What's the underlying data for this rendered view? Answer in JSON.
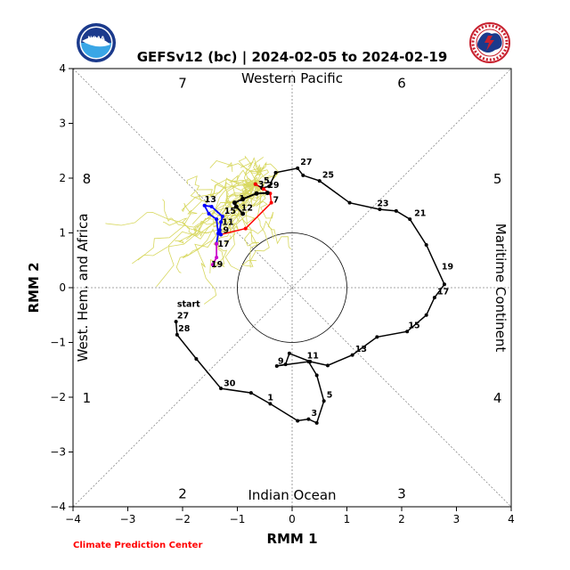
{
  "title": "GEFSv12 (bc) | 2024-02-05 to 2024-02-19",
  "footer": "Climate Prediction Center",
  "logos": {
    "left": "NOAA",
    "right": "NATIONAL WEATHER SERVICE"
  },
  "colors": {
    "observed": "#000000",
    "ens_mean_week1": "#ff0000",
    "ens_mean_week2": "#0000ff",
    "ens_mean_late": "#cc00cc",
    "members": "#d8d860",
    "footer": "#ff0000"
  },
  "chart_data": {
    "type": "line",
    "xlabel": "RMM 1",
    "ylabel": "RMM 2",
    "xlim": [
      -4,
      4
    ],
    "ylim": [
      -4,
      4
    ],
    "ticks": [
      -4,
      -3,
      -2,
      -1,
      0,
      1,
      2,
      3,
      4
    ],
    "grid": "diagonal dotted lines and unit circle",
    "phase_numbers": [
      {
        "phase": "1",
        "x": -3.75,
        "y": -2.0
      },
      {
        "phase": "2",
        "x": -2.0,
        "y": -3.75
      },
      {
        "phase": "3",
        "x": 2.0,
        "y": -3.75
      },
      {
        "phase": "4",
        "x": 3.75,
        "y": -2.0
      },
      {
        "phase": "5",
        "x": 3.75,
        "y": 2.0
      },
      {
        "phase": "6",
        "x": 2.0,
        "y": 3.75
      },
      {
        "phase": "7",
        "x": -2.0,
        "y": 3.75
      },
      {
        "phase": "8",
        "x": -3.75,
        "y": 2.0
      }
    ],
    "regions": {
      "top": "Western Pacific",
      "bottom": "Indian Ocean",
      "left": "West. Hem. and Africa",
      "right": "Maritime Continent"
    },
    "observed": {
      "name": "",
      "points": [
        [
          -2.12,
          -0.62
        ],
        [
          -2.1,
          -0.86
        ],
        [
          -1.75,
          -1.3
        ],
        [
          -1.3,
          -1.84
        ],
        [
          -0.75,
          -1.92
        ],
        [
          -0.4,
          -2.12
        ],
        [
          0.1,
          -2.43
        ],
        [
          0.3,
          -2.4
        ],
        [
          0.45,
          -2.47
        ],
        [
          0.58,
          -2.07
        ],
        [
          0.45,
          -1.6
        ],
        [
          0.3,
          -1.35
        ],
        [
          -0.28,
          -1.43
        ],
        [
          -0.12,
          -1.4
        ],
        [
          -0.05,
          -1.2
        ],
        [
          0.33,
          -1.35
        ],
        [
          0.65,
          -1.42
        ],
        [
          1.1,
          -1.23
        ],
        [
          1.55,
          -0.9
        ],
        [
          2.1,
          -0.8
        ],
        [
          2.45,
          -0.5
        ],
        [
          2.6,
          -0.18
        ],
        [
          2.78,
          0.06
        ],
        [
          2.45,
          0.78
        ],
        [
          2.15,
          1.25
        ],
        [
          1.9,
          1.4
        ],
        [
          1.6,
          1.43
        ],
        [
          1.05,
          1.55
        ],
        [
          0.5,
          1.95
        ],
        [
          0.2,
          2.05
        ],
        [
          0.1,
          2.18
        ],
        [
          -0.3,
          2.1
        ],
        [
          -0.42,
          1.85
        ],
        [
          -0.55,
          1.82
        ],
        [
          -0.67,
          1.89
        ]
      ],
      "labels": [
        {
          "text": "start",
          "x": -2.12,
          "y": -0.62,
          "dx": 0.02,
          "dy": 0.27
        },
        {
          "text": "27",
          "x": -2.12,
          "y": -0.62,
          "dx": 0.02,
          "dy": 0.06
        },
        {
          "text": "28",
          "x": -2.1,
          "y": -0.86,
          "dx": 0.02,
          "dy": 0.06
        },
        {
          "text": "30",
          "x": -1.3,
          "y": -1.84,
          "dx": 0.05,
          "dy": 0.04
        },
        {
          "text": "1",
          "x": -0.4,
          "y": -2.12,
          "dx": -0.05,
          "dy": 0.06
        },
        {
          "text": "3",
          "x": 0.3,
          "y": -2.4,
          "dx": 0.05,
          "dy": 0.06
        },
        {
          "text": "5",
          "x": 0.58,
          "y": -2.07,
          "dx": 0.05,
          "dy": 0.06
        },
        {
          "text": "9",
          "x": -0.28,
          "y": -1.43,
          "dx": 0.02,
          "dy": 0.04
        },
        {
          "text": "11",
          "x": 0.33,
          "y": -1.35,
          "dx": -0.06,
          "dy": 0.06
        },
        {
          "text": "13",
          "x": 1.1,
          "y": -1.23,
          "dx": 0.05,
          "dy": 0.06
        },
        {
          "text": "15",
          "x": 2.1,
          "y": -0.8,
          "dx": 0.02,
          "dy": 0.06
        },
        {
          "text": "17",
          "x": 2.6,
          "y": -0.18,
          "dx": 0.05,
          "dy": 0.06
        },
        {
          "text": "19",
          "x": 2.78,
          "y": 0.06,
          "dx": -0.05,
          "dy": 0.27
        },
        {
          "text": "21",
          "x": 2.15,
          "y": 1.25,
          "dx": 0.08,
          "dy": 0.06
        },
        {
          "text": "23",
          "x": 1.6,
          "y": 1.43,
          "dx": -0.05,
          "dy": 0.06
        },
        {
          "text": "25",
          "x": 0.5,
          "y": 1.95,
          "dx": 0.05,
          "dy": 0.06
        },
        {
          "text": "27",
          "x": 0.1,
          "y": 2.18,
          "dx": 0.05,
          "dy": 0.06
        },
        {
          "text": "29",
          "x": -0.55,
          "y": 1.82,
          "dx": 0.1,
          "dy": 0.0
        }
      ]
    },
    "forecast_mean": {
      "name": "",
      "red": [
        [
          -0.67,
          1.89
        ],
        [
          -0.52,
          1.8
        ],
        [
          -0.4,
          1.72
        ],
        [
          -0.38,
          1.55
        ],
        [
          -0.85,
          1.08
        ],
        [
          -1.3,
          0.97
        ]
      ],
      "blue": [
        [
          -1.3,
          0.97
        ],
        [
          -1.32,
          1.05
        ],
        [
          -1.3,
          1.2
        ],
        [
          -1.27,
          1.3
        ],
        [
          -1.47,
          1.48
        ],
        [
          -1.6,
          1.5
        ],
        [
          -1.52,
          1.35
        ],
        [
          -1.38,
          1.25
        ],
        [
          -1.35,
          0.99
        ],
        [
          -1.38,
          0.8
        ]
      ],
      "magenta": [
        [
          -1.38,
          0.8
        ],
        [
          -1.38,
          0.55
        ],
        [
          -1.45,
          0.42
        ]
      ],
      "black_lead": [
        [
          -0.9,
          1.35
        ],
        [
          -1.02,
          1.48
        ],
        [
          -1.05,
          1.55
        ],
        [
          -0.9,
          1.62
        ],
        [
          -0.65,
          1.72
        ],
        [
          -0.45,
          1.73
        ]
      ],
      "labels": [
        {
          "text": "1",
          "x": -1.02,
          "y": 1.48,
          "dx": 0.05,
          "dy": 0.1
        },
        {
          "text": "3",
          "x": -0.65,
          "y": 1.72,
          "dx": 0.03,
          "dy": 0.12
        },
        {
          "text": "5",
          "x": -0.52,
          "y": 1.8,
          "dx": 0.0,
          "dy": 0.1
        },
        {
          "text": "7",
          "x": -0.4,
          "y": 1.55,
          "dx": 0.05,
          "dy": 0.0
        },
        {
          "text": "9",
          "x": -1.32,
          "y": 1.05,
          "dx": 0.06,
          "dy": -0.05
        },
        {
          "text": "11",
          "x": -1.3,
          "y": 1.2,
          "dx": 0.02,
          "dy": -0.05
        },
        {
          "text": "12",
          "x": -0.9,
          "y": 1.35,
          "dx": -0.03,
          "dy": 0.06
        },
        {
          "text": "13",
          "x": -1.6,
          "y": 1.5,
          "dx": 0.0,
          "dy": 0.06
        },
        {
          "text": "15",
          "x": -1.27,
          "y": 1.3,
          "dx": 0.03,
          "dy": 0.05
        },
        {
          "text": "17",
          "x": -1.38,
          "y": 0.8,
          "dx": 0.02,
          "dy": -0.05
        },
        {
          "text": "19",
          "x": -1.45,
          "y": 0.42,
          "dx": -0.03,
          "dy": -0.05
        }
      ]
    }
  }
}
